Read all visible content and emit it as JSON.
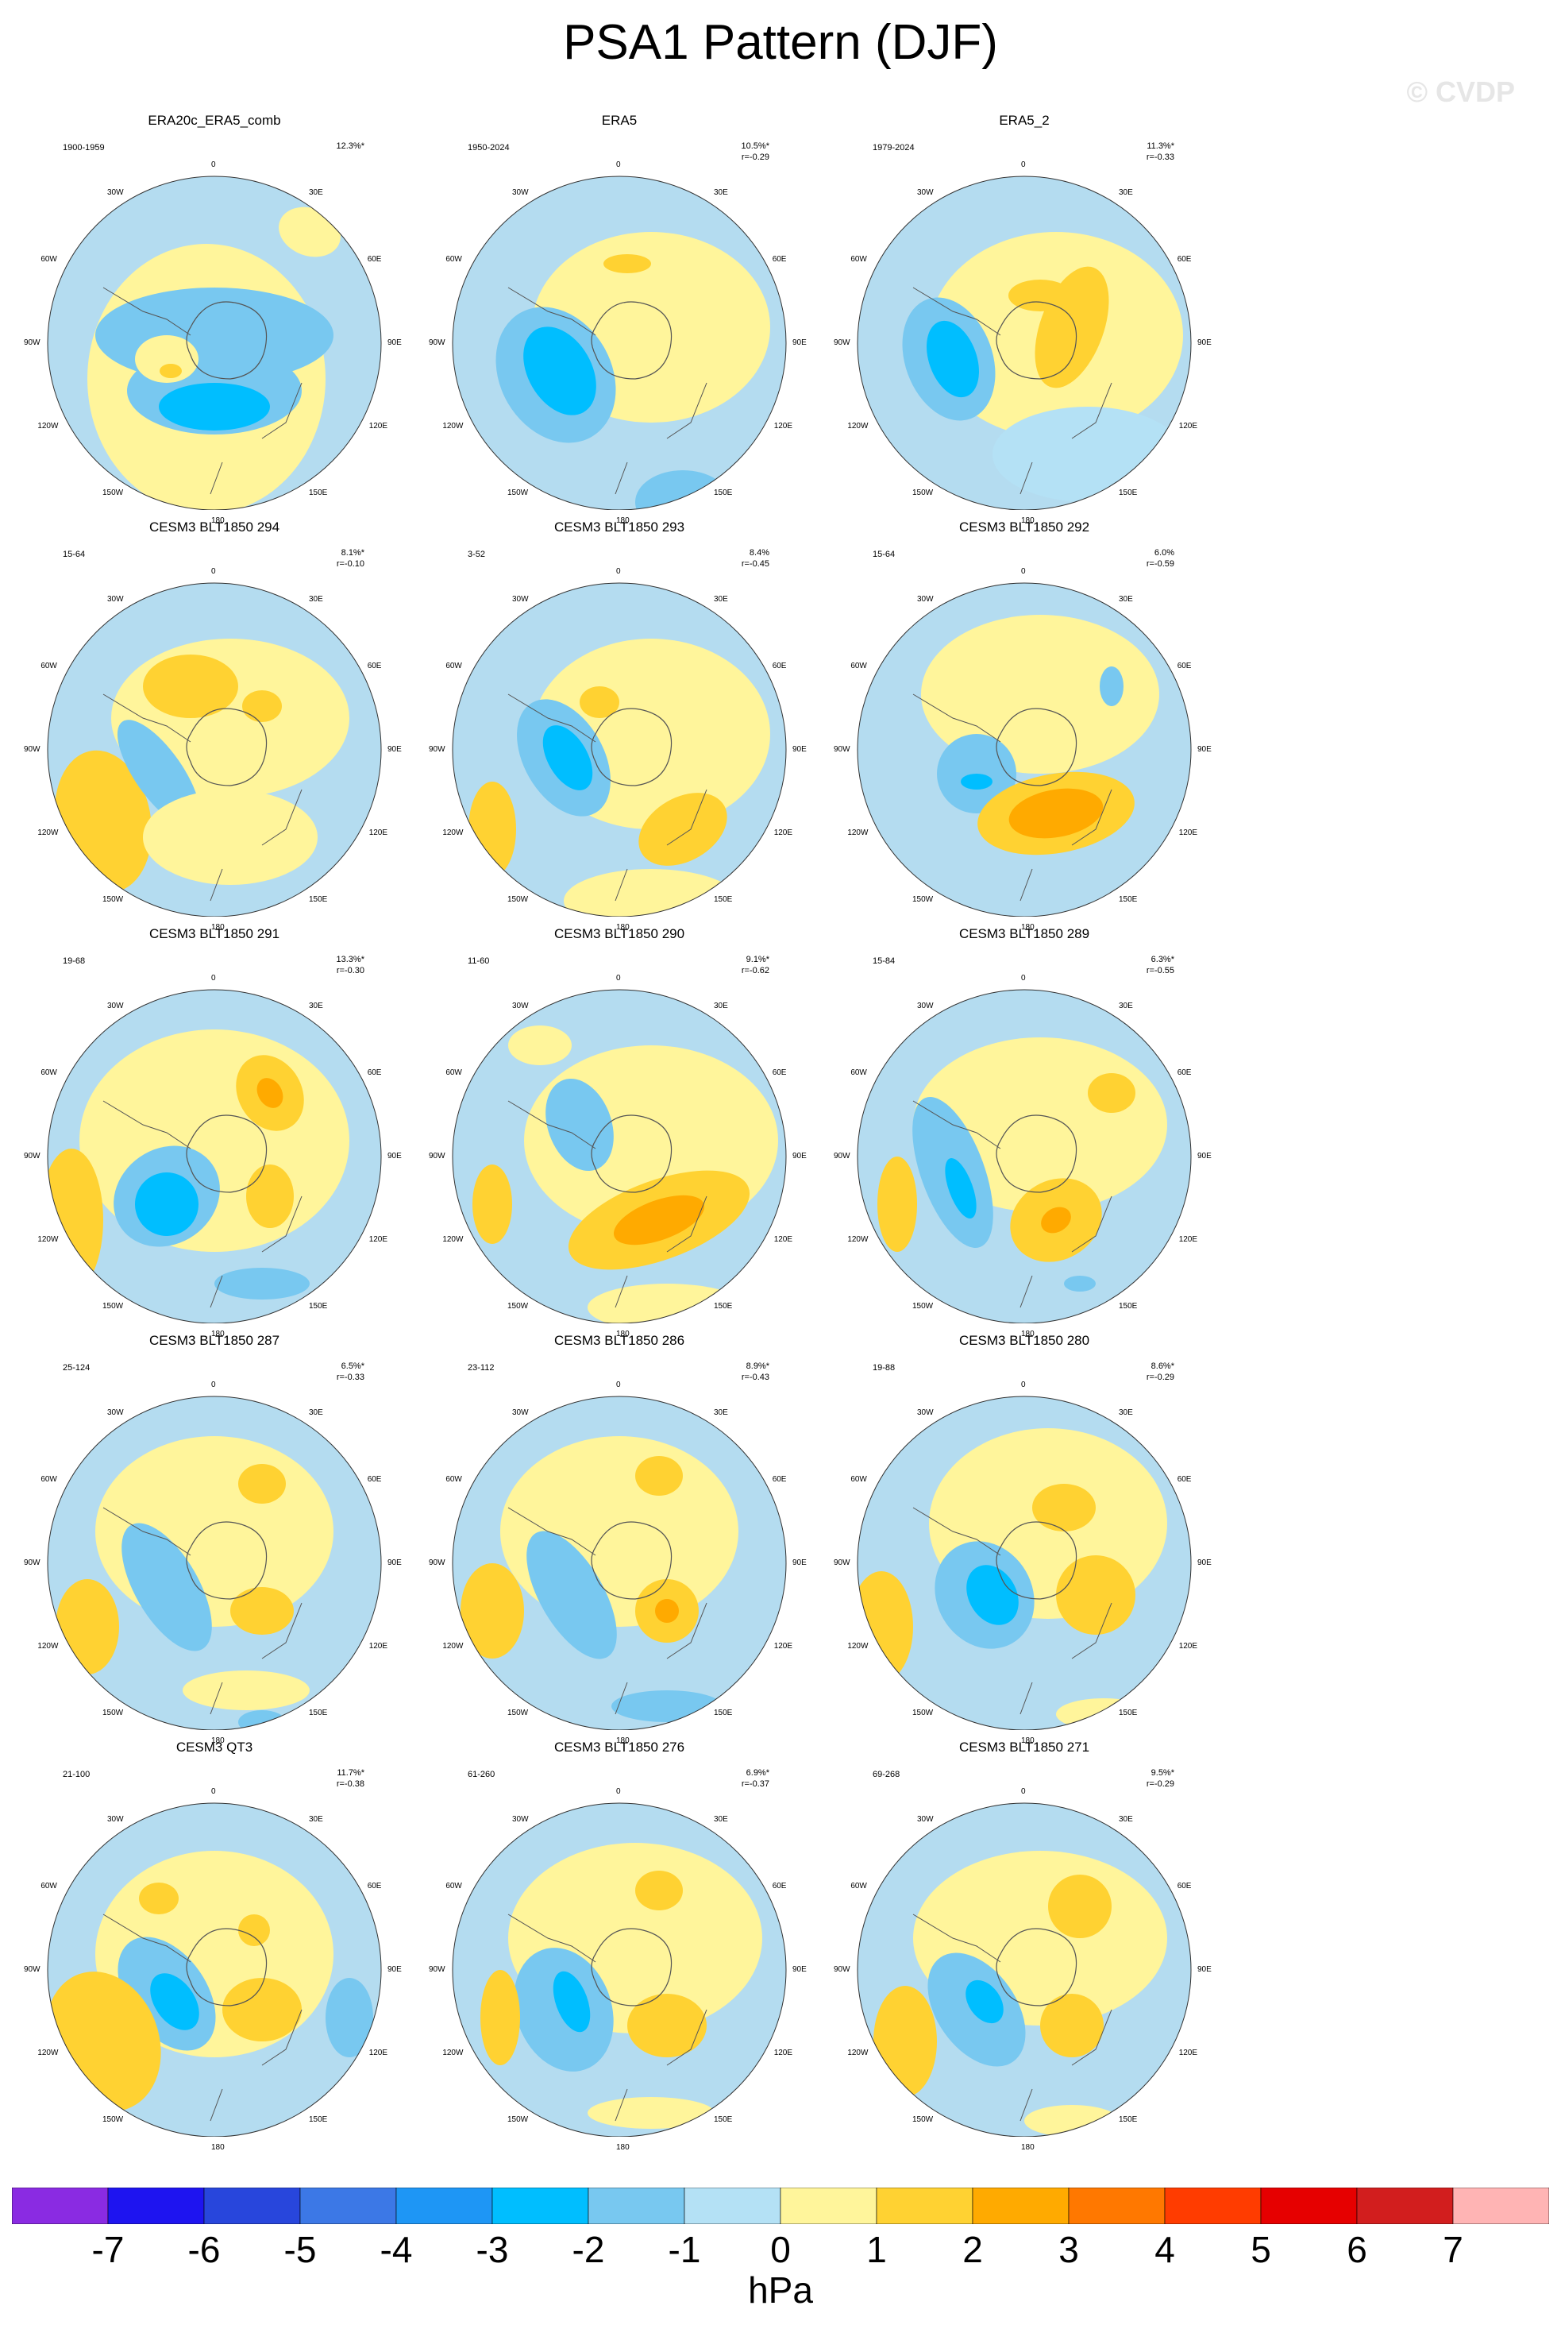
{
  "title": "PSA1 Pattern (DJF)",
  "watermark": "© CVDP",
  "lon_labels": {
    "top": "0",
    "nw": "30W",
    "ne": "30E",
    "wnw": "60W",
    "ene": "60E",
    "w": "90W",
    "e": "90E",
    "wsw": "120W",
    "ese": "120E",
    "sw": "150W",
    "se": "150E",
    "bottom": "180"
  },
  "panels": [
    {
      "title": "ERA20c_ERA5_comb",
      "years": "1900-1959",
      "pct": "12.3%*",
      "r": ""
    },
    {
      "title": "ERA5",
      "years": "1950-2024",
      "pct": "10.5%*",
      "r": "r=-0.29"
    },
    {
      "title": "ERA5_2",
      "years": "1979-2024",
      "pct": "11.3%*",
      "r": "r=-0.33"
    },
    {
      "title": "CESM3 BLT1850 294",
      "years": "15-64",
      "pct": "8.1%*",
      "r": "r=-0.10"
    },
    {
      "title": "CESM3 BLT1850 293",
      "years": "3-52",
      "pct": "8.4%",
      "r": "r=-0.45"
    },
    {
      "title": "CESM3 BLT1850 292",
      "years": "15-64",
      "pct": "6.0%",
      "r": "r=-0.59"
    },
    {
      "title": "CESM3 BLT1850 291",
      "years": "19-68",
      "pct": "13.3%*",
      "r": "r=-0.30"
    },
    {
      "title": "CESM3 BLT1850 290",
      "years": "11-60",
      "pct": "9.1%*",
      "r": "r=-0.62"
    },
    {
      "title": "CESM3 BLT1850 289",
      "years": "15-84",
      "pct": "6.3%*",
      "r": "r=-0.55"
    },
    {
      "title": "CESM3 BLT1850 287",
      "years": "25-124",
      "pct": "6.5%*",
      "r": "r=-0.33"
    },
    {
      "title": "CESM3 BLT1850 286",
      "years": "23-112",
      "pct": "8.9%*",
      "r": "r=-0.43"
    },
    {
      "title": "CESM3 BLT1850 280",
      "years": "19-88",
      "pct": "8.6%*",
      "r": "r=-0.29"
    },
    {
      "title": "CESM3 QT3",
      "years": "21-100",
      "pct": "11.7%*",
      "r": "r=-0.38"
    },
    {
      "title": "CESM3 BLT1850 276",
      "years": "61-260",
      "pct": "6.9%*",
      "r": "r=-0.37"
    },
    {
      "title": "CESM3 BLT1850 271",
      "years": "69-268",
      "pct": "9.5%*",
      "r": "r=-0.29"
    }
  ],
  "colorbar": {
    "unit": "hPa",
    "ticks": [
      "-7",
      "-6",
      "-5",
      "-4",
      "-3",
      "-2",
      "-1",
      "0",
      "1",
      "2",
      "3",
      "4",
      "5",
      "6",
      "7"
    ],
    "colors": [
      "#8a2be2",
      "#1e14f0",
      "#2846dc",
      "#3c78e6",
      "#1e96f5",
      "#00beff",
      "#78c8f0",
      "#b4e1f5",
      "#fff59b",
      "#ffd232",
      "#ffaa00",
      "#ff7800",
      "#ff3c00",
      "#e60000",
      "#d21e1e",
      "#ffb4b4"
    ]
  },
  "colors": {
    "land_outline": "#555555",
    "ocean_base": "#b4dcf0"
  }
}
